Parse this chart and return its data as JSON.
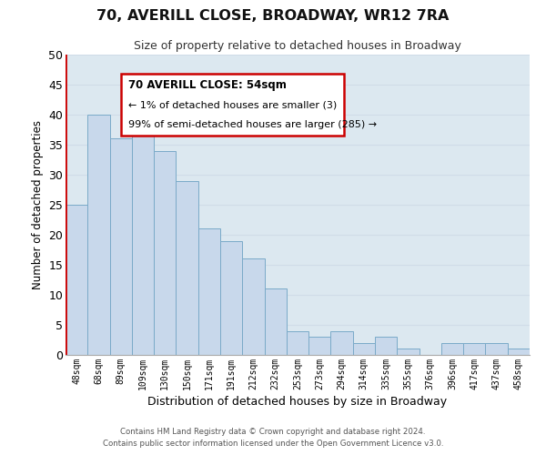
{
  "title": "70, AVERILL CLOSE, BROADWAY, WR12 7RA",
  "subtitle": "Size of property relative to detached houses in Broadway",
  "xlabel": "Distribution of detached houses by size in Broadway",
  "ylabel": "Number of detached properties",
  "bar_labels": [
    "48sqm",
    "68sqm",
    "89sqm",
    "109sqm",
    "130sqm",
    "150sqm",
    "171sqm",
    "191sqm",
    "212sqm",
    "232sqm",
    "253sqm",
    "273sqm",
    "294sqm",
    "314sqm",
    "335sqm",
    "355sqm",
    "376sqm",
    "396sqm",
    "417sqm",
    "437sqm",
    "458sqm"
  ],
  "bar_values": [
    25,
    40,
    36,
    37,
    34,
    29,
    21,
    19,
    16,
    11,
    4,
    3,
    4,
    2,
    3,
    1,
    0,
    2,
    2,
    2,
    1
  ],
  "bar_color": "#c8d8eb",
  "bar_edge_color": "#7aaac8",
  "ylim": [
    0,
    50
  ],
  "yticks": [
    0,
    5,
    10,
    15,
    20,
    25,
    30,
    35,
    40,
    45,
    50
  ],
  "annotation_title": "70 AVERILL CLOSE: 54sqm",
  "annotation_line2": "← 1% of detached houses are smaller (3)",
  "annotation_line3": "99% of semi-detached houses are larger (285) →",
  "footer_line1": "Contains HM Land Registry data © Crown copyright and database right 2024.",
  "footer_line2": "Contains public sector information licensed under the Open Government Licence v3.0.",
  "grid_color": "#d0dce8",
  "plot_bg_color": "#dce8f0",
  "fig_bg_color": "#ffffff",
  "red_line_color": "#cc0000",
  "ann_box_edge_color": "#cc0000",
  "ann_box_face_color": "#ffffff"
}
